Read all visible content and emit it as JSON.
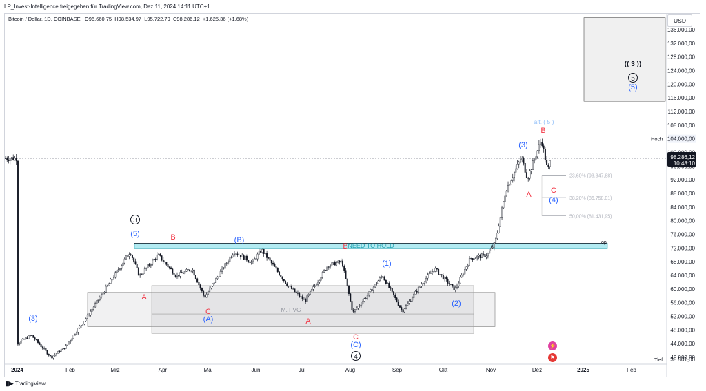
{
  "header": {
    "shared_by": "LP_Invest-Intelligence freigegeben für TradingView.com, Dez 11, 2024 14:11 UTC+1"
  },
  "legend": {
    "symbol": "Bitcoin / Dollar, 1D, COINBASE",
    "open": "O96.660,75",
    "high": "H98.534,97",
    "low": "L95.722,79",
    "close": "C98.286,12",
    "change": "+1.625,36 (+1,68%)"
  },
  "price_scale": {
    "currency": "USD",
    "ticks": [
      "136.000,00",
      "132.000,00",
      "128.000,00",
      "124.000,00",
      "120.000,00",
      "116.000,00",
      "112.000,00",
      "108.000,00",
      "104.000,00",
      "100.000,00",
      "96.000,00",
      "92.000,00",
      "88.000,00",
      "84.000,00",
      "80.000,00",
      "76.000,00",
      "72.000,00",
      "68.000,00",
      "64.000,00",
      "60.000,00",
      "56.000,00",
      "52.000,00",
      "48.000,00",
      "44.000,00",
      "40.000,00"
    ],
    "last_price": "98.286,12",
    "countdown": "10:48:10",
    "high_label": "Hoch",
    "high_value": "104.000,00",
    "low_label": "Tief",
    "low_value": "38.501,00"
  },
  "time_axis": {
    "labels": [
      "2024",
      "Feb",
      "Mrz",
      "Apr",
      "Mai",
      "Jun",
      "Jul",
      "Aug",
      "Sep",
      "Okt",
      "Nov",
      "Dez",
      "2025",
      "Feb"
    ]
  },
  "annotations": {
    "need_to_hold": "NEED TO HOLD",
    "mfvg": "M. FVG",
    "alt5": "alt. ( 5 )",
    "wave3_big": "(( 3 ))",
    "circled5": "5",
    "paren5_top": "(5)",
    "circled3": "3",
    "circled4": "4",
    "paren5_left": "(5)",
    "paren3_left": "(3)",
    "A": "A",
    "B": "B",
    "C": "C",
    "bigA": "(A)",
    "bigB": "(B)",
    "bigC": "(C)",
    "w1": "(1)",
    "w2": "(2)",
    "w3": "(3)",
    "w4": "(4)",
    "fib_236": "23,60% (93.347,88)",
    "fib_382": "38,20% (86.758,01)",
    "fib_500": "50,00% (81.431,95)",
    "op": "op"
  },
  "footer": {
    "brand": "TradingView"
  },
  "colors": {
    "up": "#131722",
    "down": "#131722",
    "blue_label": "#2962ff",
    "red_label": "#f23645",
    "cyan_zone": "#b2ebf2",
    "gray_zone": "#e0e3eb"
  },
  "chart_data": {
    "type": "candlestick",
    "title": "Bitcoin / Dollar, 1D, COINBASE",
    "ylim": [
      38501,
      139500
    ],
    "y_unit": "USD",
    "x_range": [
      "2023-12-23",
      "2025-02-28"
    ],
    "last": 98286.12,
    "high": 104000,
    "low": 38501,
    "series": [
      {
        "name": "close",
        "x": [
          "2024-01-01",
          "2024-01-10",
          "2024-01-23",
          "2024-02-01",
          "2024-02-15",
          "2024-03-01",
          "2024-03-14",
          "2024-03-20",
          "2024-04-01",
          "2024-04-13",
          "2024-04-23",
          "2024-05-01",
          "2024-05-20",
          "2024-06-01",
          "2024-06-07",
          "2024-06-24",
          "2024-07-05",
          "2024-07-20",
          "2024-07-29",
          "2024-08-05",
          "2024-08-15",
          "2024-08-24",
          "2024-09-06",
          "2024-09-20",
          "2024-09-27",
          "2024-10-10",
          "2024-10-20",
          "2024-10-31",
          "2024-11-05",
          "2024-11-12",
          "2024-11-22",
          "2024-11-26",
          "2024-12-05",
          "2024-12-09",
          "2024-12-11"
        ],
        "values": [
          44000,
          46500,
          40000,
          43000,
          51800,
          62000,
          71000,
          63800,
          70000,
          63800,
          66000,
          57500,
          71000,
          67800,
          71500,
          61000,
          56500,
          67000,
          68000,
          53000,
          58500,
          64000,
          53500,
          62500,
          65900,
          59800,
          69000,
          70000,
          73500,
          89000,
          98500,
          92500,
          103800,
          94600,
          98286
        ]
      }
    ],
    "zones": [
      {
        "label": "NEED TO HOLD",
        "from": 72000,
        "to": 73400
      },
      {
        "label": "M. FVG",
        "from": 52000,
        "to": 59000
      }
    ],
    "fibonacci": [
      {
        "label": "23,60%",
        "value": 93347.88
      },
      {
        "label": "38,20%",
        "value": 86758.01
      },
      {
        "label": "50,00%",
        "value": 81431.95
      }
    ]
  }
}
